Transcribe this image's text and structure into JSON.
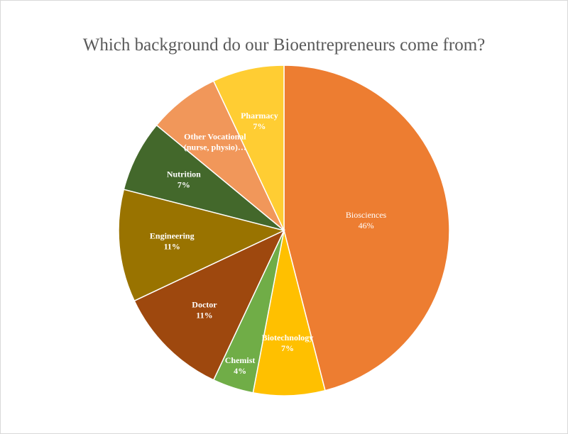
{
  "chart_data": {
    "type": "pie",
    "title": "Which background do our Bioentrepreneurs come from?",
    "slices": [
      {
        "label": "Biosciences",
        "value": 46,
        "value_label": "46%",
        "color": "#ED7D31",
        "text_color": "#ffffff",
        "bold": false
      },
      {
        "label": "Biotechnology",
        "value": 7,
        "value_label": "7%",
        "color": "#FFC000",
        "text_color": "#ffffff",
        "bold": true
      },
      {
        "label": "Chemist",
        "value": 4,
        "value_label": "4%",
        "color": "#70AD47",
        "text_color": "#ffffff",
        "bold": true
      },
      {
        "label": "Doctor",
        "value": 11,
        "value_label": "11%",
        "color": "#9E480E",
        "text_color": "#ffffff",
        "bold": true
      },
      {
        "label": "Engineering",
        "value": 11,
        "value_label": "11%",
        "color": "#997300",
        "text_color": "#ffffff",
        "bold": true
      },
      {
        "label": "Nutrition",
        "value": 7,
        "value_label": "7%",
        "color": "#43682B",
        "text_color": "#ffffff",
        "bold": true
      },
      {
        "label": "Other Vocational (nurse, physio)...",
        "label_lines": [
          "Other Vocational",
          "(nurse, physio)…"
        ],
        "value": 7,
        "value_label": "",
        "color": "#F1975A",
        "text_color": "#ffffff",
        "bold": true
      },
      {
        "label": "Pharmacy",
        "value": 7,
        "value_label": "7%",
        "color": "#FFCD33",
        "text_color": "#ffffff",
        "bold": true
      }
    ],
    "legend": "none"
  }
}
